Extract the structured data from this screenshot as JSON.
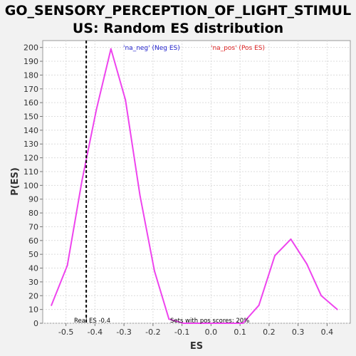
{
  "chart_data": {
    "type": "line",
    "title_line1": "GO_SENSORY_PERCEPTION_OF_LIGHT_STIMUL",
    "title_line2": "US: Random ES distribution",
    "xlabel": "ES",
    "ylabel": "P(ES)",
    "xlim": [
      -0.58,
      0.48
    ],
    "ylim": [
      0,
      205
    ],
    "xticks": [
      -0.5,
      -0.4,
      -0.3,
      -0.2,
      -0.1,
      0.0,
      0.1,
      0.2,
      0.3,
      0.4
    ],
    "xtick_labels": [
      "-0.5",
      "-0.4",
      "-0.3",
      "-0.2",
      "-0.1",
      "0.0",
      "0.1",
      "0.2",
      "0.3",
      "0.4"
    ],
    "yticks": [
      0,
      10,
      20,
      30,
      40,
      50,
      60,
      70,
      80,
      90,
      100,
      110,
      120,
      130,
      140,
      150,
      160,
      170,
      180,
      190,
      200
    ],
    "ytick_labels": [
      "0",
      "10",
      "20",
      "30",
      "40",
      "50",
      "60",
      "70",
      "80",
      "90",
      "100",
      "110",
      "120",
      "130",
      "140",
      "150",
      "160",
      "170",
      "180",
      "190",
      "200"
    ],
    "grid": true,
    "series": [
      {
        "color": "#ee44ee",
        "x": [
          -0.55,
          -0.495,
          -0.445,
          -0.395,
          -0.345,
          -0.295,
          -0.245,
          -0.195,
          -0.145,
          -0.095,
          -0.045,
          0.005,
          0.055,
          0.11,
          0.165,
          0.22,
          0.275,
          0.33,
          0.38,
          0.435
        ],
        "y": [
          13,
          42,
          103,
          155,
          199,
          162,
          93,
          38,
          3,
          0,
          0,
          0,
          0,
          0,
          13,
          49,
          61,
          43,
          20,
          10
        ]
      }
    ],
    "real_es_line": {
      "x": -0.43,
      "color": "#000000"
    },
    "legend": [
      {
        "label": "'na_neg' (Neg ES)",
        "color": "#2222cc"
      },
      {
        "label": "'na_pos' (Pos ES)",
        "color": "#dd2222"
      }
    ],
    "annotations": {
      "real_es": "Real ES -0.4",
      "pos_scores": "Sets with pos scores: 20%"
    }
  }
}
